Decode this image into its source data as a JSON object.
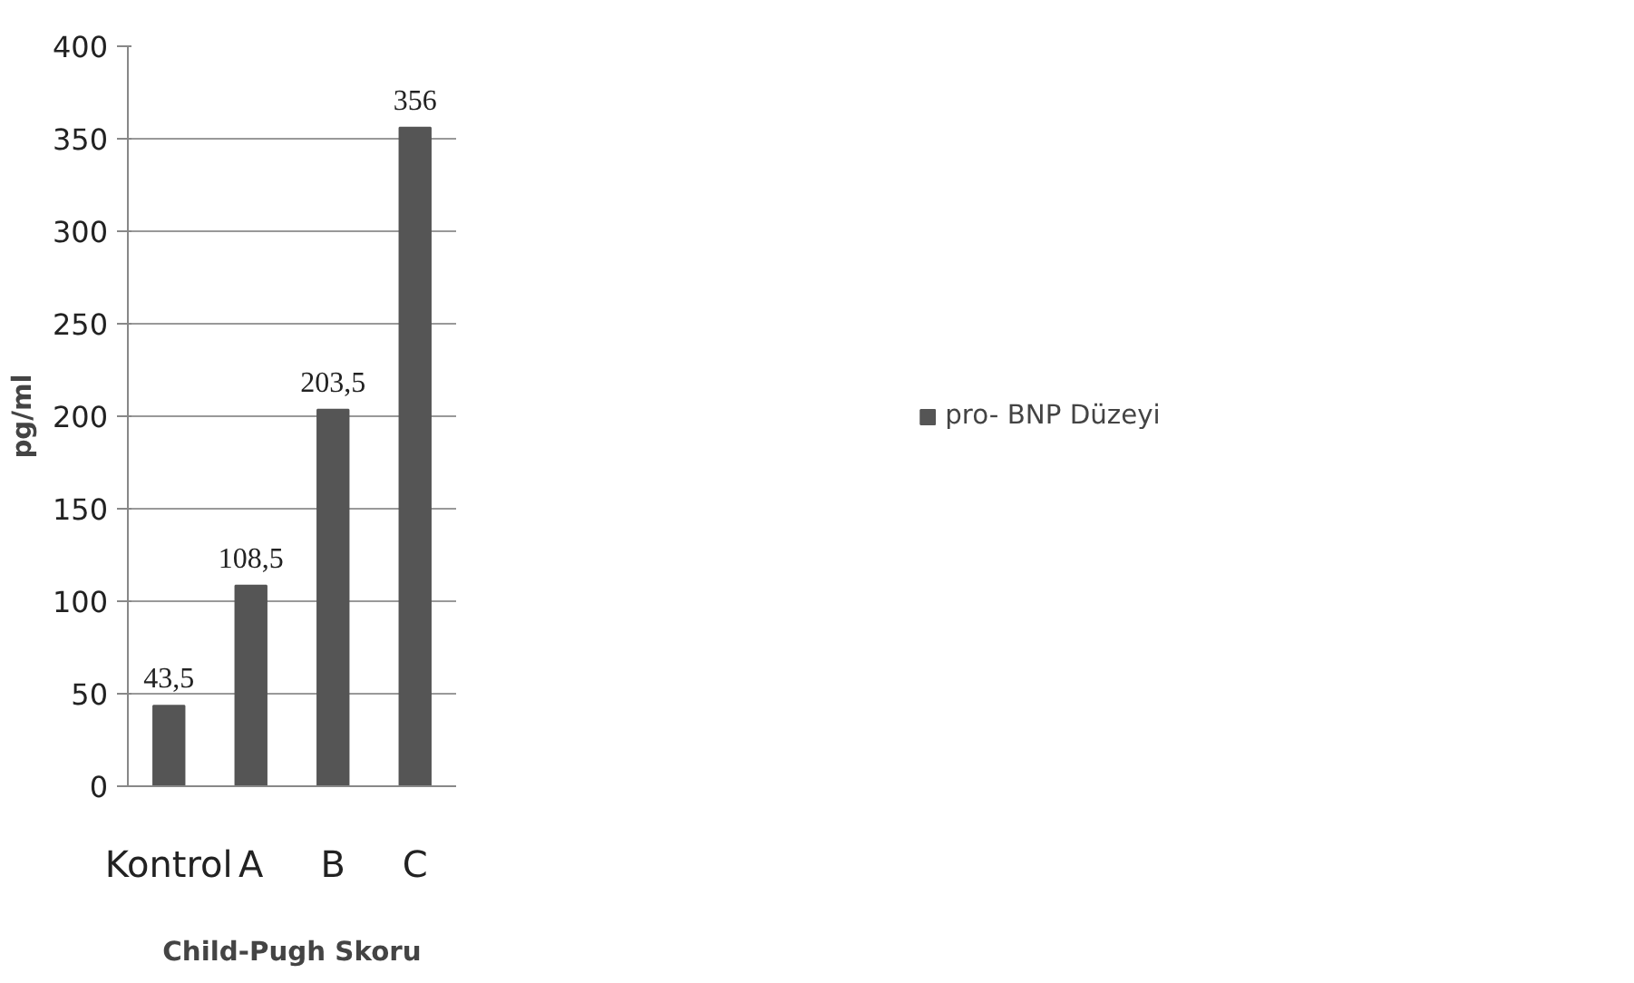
{
  "chart_data": {
    "type": "bar",
    "xlabel": "Child-Pugh Skoru",
    "ylabel": "pg/ml",
    "categories": [
      "Kontrol",
      "A",
      "B",
      "C"
    ],
    "series": [
      {
        "name": "pro- BNP Düzeyi",
        "color": "#555555",
        "values": [
          43.5,
          108.5,
          203.5,
          356
        ],
        "value_labels": [
          "43,5",
          "108,5",
          "203,5",
          "356"
        ]
      }
    ],
    "ylim": [
      0,
      400
    ],
    "yticks": [
      0,
      50,
      100,
      150,
      200,
      250,
      300,
      350,
      400
    ],
    "grid": "y",
    "legend": "right"
  }
}
